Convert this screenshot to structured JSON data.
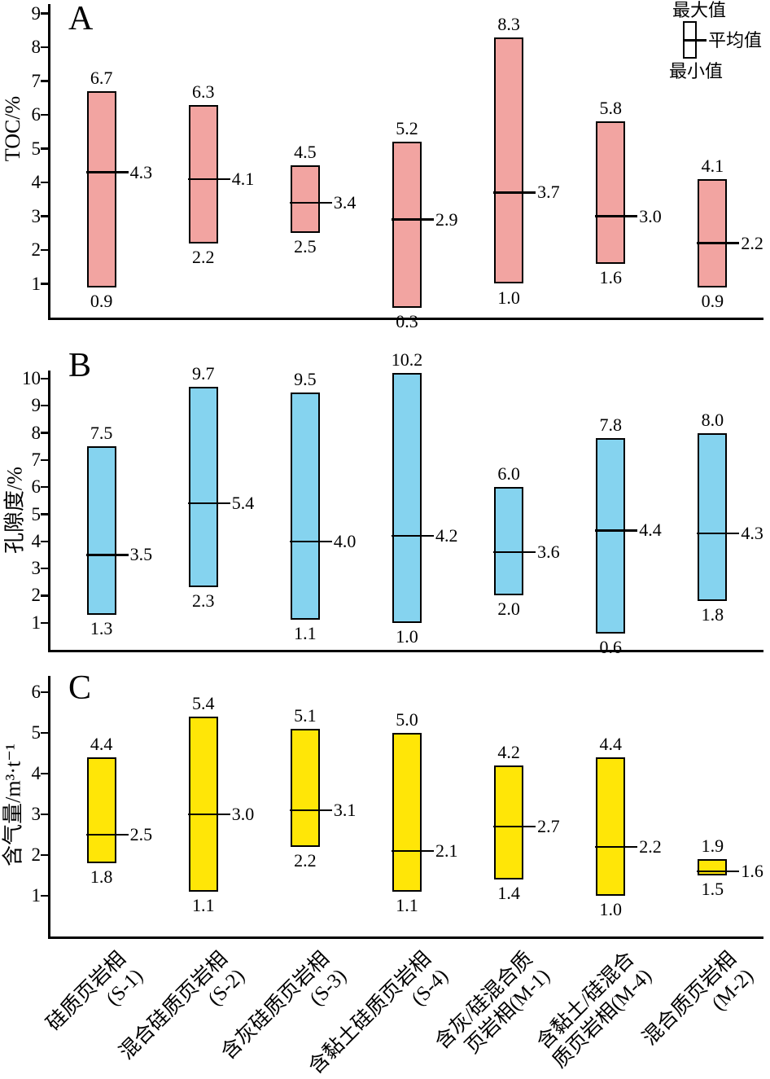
{
  "figure": {
    "legend": {
      "max": "最大值",
      "mean": "平均值",
      "min": "最小值"
    }
  },
  "categories": [
    "硅质页岩相(S-1)",
    "混合硅质页岩相(S-2)",
    "含灰硅质页岩相(S-3)",
    "含黏土硅质页岩相(S-4)",
    "含灰/硅混合质页岩相(M-1)",
    "含黏土/硅混合质页岩相(M-4)",
    "混合质页岩相(M-2)"
  ],
  "categories_lines": [
    [
      "硅质页岩相",
      "(S-1)"
    ],
    [
      "混合硅质页岩相",
      "(S-2)"
    ],
    [
      "含灰硅质页岩相",
      "(S-3)"
    ],
    [
      "含黏土硅质页岩相",
      "(S-4)"
    ],
    [
      "含灰/硅混合质",
      "页岩相(M-1)"
    ],
    [
      "含黏土/硅混合",
      "质页岩相(M-4)"
    ],
    [
      "混合质页岩相",
      "(M-2)"
    ]
  ],
  "chart_data": [
    {
      "type": "bar",
      "subtype": "floating-range-bars-min-mean-max",
      "panel": "A",
      "title": "",
      "xlabel": "",
      "ylabel": "TOC/%",
      "ylim": [
        0,
        9
      ],
      "yticks": [
        1,
        2,
        3,
        4,
        5,
        6,
        7,
        8,
        9
      ],
      "grid": false,
      "legend_position": "top-right",
      "bar_color": "#f2a4a1",
      "categories": [
        "硅质页岩相(S-1)",
        "混合硅质页岩相(S-2)",
        "含灰硅质页岩相(S-3)",
        "含黏土硅质页岩相(S-4)",
        "含灰/硅混合质页岩相(M-1)",
        "含黏土/硅混合质页岩相(M-4)",
        "混合质页岩相(M-2)"
      ],
      "series": [
        {
          "name": "最大值",
          "values": [
            6.7,
            6.3,
            4.5,
            5.2,
            8.3,
            5.8,
            4.1
          ]
        },
        {
          "name": "平均值",
          "values": [
            4.3,
            4.1,
            3.4,
            2.9,
            3.7,
            3.0,
            2.2
          ]
        },
        {
          "name": "最小值",
          "values": [
            0.9,
            2.2,
            2.5,
            0.3,
            1.0,
            1.6,
            0.9
          ]
        }
      ]
    },
    {
      "type": "bar",
      "subtype": "floating-range-bars-min-mean-max",
      "panel": "B",
      "title": "",
      "xlabel": "",
      "ylabel": "孔隙度/%",
      "ylim": [
        0,
        10
      ],
      "yticks": [
        1,
        2,
        3,
        4,
        5,
        6,
        7,
        8,
        9,
        10
      ],
      "grid": false,
      "bar_color": "#85d3ef",
      "categories": [
        "硅质页岩相(S-1)",
        "混合硅质页岩相(S-2)",
        "含灰硅质页岩相(S-3)",
        "含黏土硅质页岩相(S-4)",
        "含灰/硅混合质页岩相(M-1)",
        "含黏土/硅混合质页岩相(M-4)",
        "混合质页岩相(M-2)"
      ],
      "series": [
        {
          "name": "最大值",
          "values": [
            7.5,
            9.7,
            9.5,
            10.2,
            6.0,
            7.8,
            8.0
          ]
        },
        {
          "name": "平均值",
          "values": [
            3.5,
            5.4,
            4.0,
            4.2,
            3.6,
            4.4,
            4.3
          ]
        },
        {
          "name": "最小值",
          "values": [
            1.3,
            2.3,
            1.1,
            1.0,
            2.0,
            0.6,
            1.8
          ]
        }
      ]
    },
    {
      "type": "bar",
      "subtype": "floating-range-bars-min-mean-max",
      "panel": "C",
      "title": "",
      "xlabel": "",
      "ylabel": "含气量/m³·t⁻¹",
      "ylim": [
        0,
        6
      ],
      "yticks": [
        1,
        2,
        3,
        4,
        5,
        6
      ],
      "grid": false,
      "bar_color": "#ffe607",
      "categories": [
        "硅质页岩相(S-1)",
        "混合硅质页岩相(S-2)",
        "含灰硅质页岩相(S-3)",
        "含黏土硅质页岩相(S-4)",
        "含灰/硅混合质页岩相(M-1)",
        "含黏土/硅混合质页岩相(M-4)",
        "混合质页岩相(M-2)"
      ],
      "series": [
        {
          "name": "最大值",
          "values": [
            4.4,
            5.4,
            5.1,
            5.0,
            4.2,
            4.4,
            1.9
          ]
        },
        {
          "name": "平均值",
          "values": [
            2.5,
            3.0,
            3.1,
            2.1,
            2.7,
            2.2,
            1.6
          ]
        },
        {
          "name": "最小值",
          "values": [
            1.8,
            1.1,
            2.2,
            1.1,
            1.4,
            1.0,
            1.5
          ]
        }
      ]
    }
  ]
}
